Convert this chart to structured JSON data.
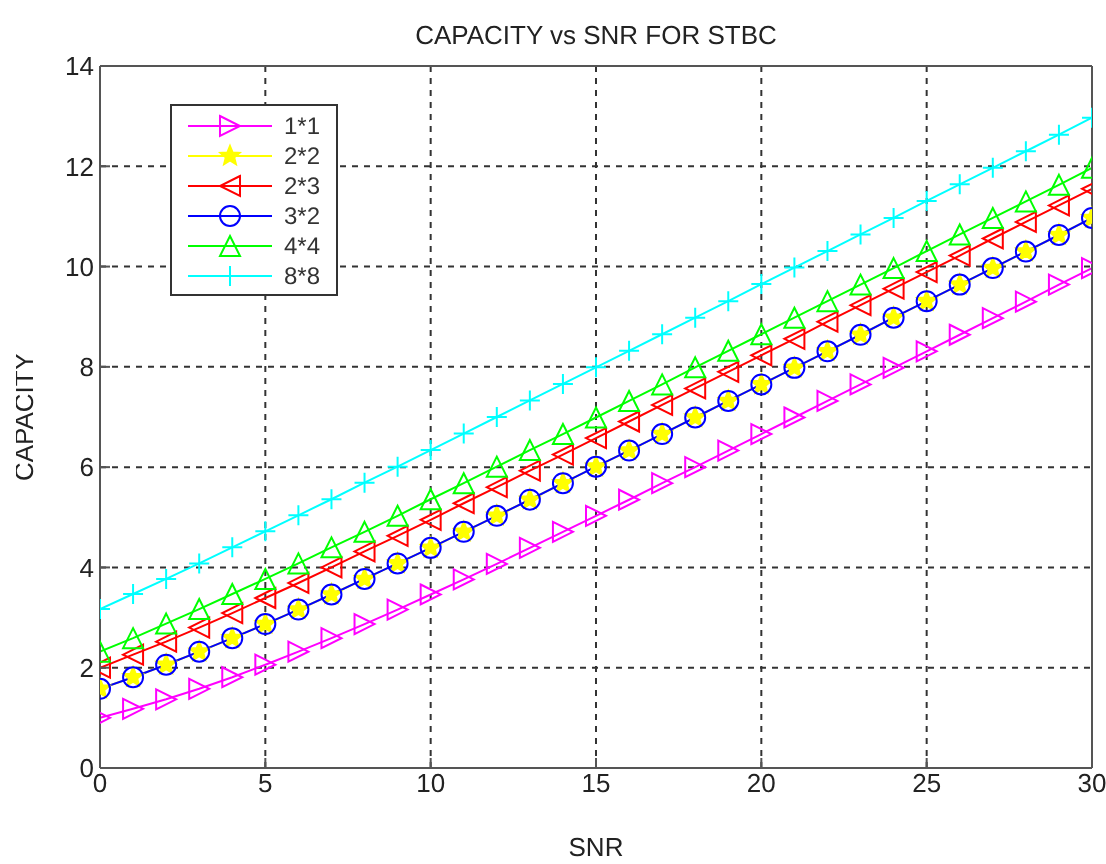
{
  "chart_data": {
    "type": "line",
    "title": "CAPACITY vs SNR FOR STBC",
    "xlabel": "SNR",
    "ylabel": "CAPACITY",
    "x": [
      0,
      1,
      2,
      3,
      4,
      5,
      6,
      7,
      8,
      9,
      10,
      11,
      12,
      13,
      14,
      15,
      16,
      17,
      18,
      19,
      20,
      21,
      22,
      23,
      24,
      25,
      26,
      27,
      28,
      29,
      30
    ],
    "series": [
      {
        "name": "1*1",
        "color": "#ff00ff",
        "marker": "triangle-right",
        "values": [
          1.0,
          1.18,
          1.37,
          1.58,
          1.81,
          2.06,
          2.32,
          2.59,
          2.87,
          3.16,
          3.46,
          3.76,
          4.07,
          4.39,
          4.71,
          5.03,
          5.35,
          5.68,
          6.0,
          6.33,
          6.66,
          6.99,
          7.32,
          7.65,
          7.98,
          8.31,
          8.64,
          8.97,
          9.3,
          9.64,
          9.97
        ]
      },
      {
        "name": "2*2",
        "color": "#ffff00",
        "marker": "star",
        "values": [
          1.58,
          1.81,
          2.06,
          2.32,
          2.59,
          2.87,
          3.16,
          3.46,
          3.77,
          4.08,
          4.39,
          4.71,
          5.03,
          5.35,
          5.68,
          6.01,
          6.33,
          6.66,
          6.99,
          7.32,
          7.65,
          7.98,
          8.31,
          8.64,
          8.98,
          9.31,
          9.64,
          9.97,
          10.3,
          10.63,
          10.97
        ]
      },
      {
        "name": "2*3",
        "color": "#ff0000",
        "marker": "triangle-left",
        "values": [
          2.0,
          2.26,
          2.52,
          2.8,
          3.09,
          3.39,
          3.69,
          4.0,
          4.32,
          4.63,
          4.95,
          5.28,
          5.6,
          5.93,
          6.25,
          6.58,
          6.91,
          7.24,
          7.57,
          7.9,
          8.23,
          8.56,
          8.9,
          9.23,
          9.56,
          9.89,
          10.22,
          10.56,
          10.89,
          11.22,
          11.55
        ]
      },
      {
        "name": "3*2",
        "color": "#0000ff",
        "marker": "circle",
        "values": [
          1.58,
          1.81,
          2.06,
          2.32,
          2.59,
          2.87,
          3.16,
          3.46,
          3.77,
          4.08,
          4.39,
          4.71,
          5.03,
          5.35,
          5.68,
          6.01,
          6.33,
          6.66,
          6.99,
          7.32,
          7.65,
          7.98,
          8.31,
          8.64,
          8.98,
          9.31,
          9.64,
          9.97,
          10.3,
          10.63,
          10.97
        ]
      },
      {
        "name": "4*4",
        "color": "#00ff00",
        "marker": "triangle",
        "values": [
          2.32,
          2.59,
          2.88,
          3.17,
          3.47,
          3.77,
          4.08,
          4.4,
          4.71,
          5.03,
          5.36,
          5.68,
          6.01,
          6.34,
          6.66,
          6.99,
          7.32,
          7.65,
          7.99,
          8.32,
          8.65,
          8.98,
          9.31,
          9.64,
          9.97,
          10.31,
          10.64,
          10.97,
          11.3,
          11.63,
          11.97
        ]
      },
      {
        "name": "8*8",
        "color": "#00ffff",
        "marker": "cross",
        "values": [
          3.17,
          3.47,
          3.77,
          4.08,
          4.4,
          4.72,
          5.04,
          5.36,
          5.69,
          6.01,
          6.34,
          6.67,
          7.0,
          7.33,
          7.66,
          7.99,
          8.32,
          8.65,
          8.98,
          9.31,
          9.65,
          9.98,
          10.31,
          10.64,
          10.97,
          11.31,
          11.64,
          11.97,
          12.3,
          12.63,
          12.97
        ]
      }
    ],
    "xlim": [
      0,
      30
    ],
    "xticks": [
      0,
      5,
      10,
      15,
      20,
      25,
      30
    ],
    "ylim": [
      0,
      14
    ],
    "yticks": [
      0,
      2,
      4,
      6,
      8,
      10,
      12,
      14
    ],
    "grid": true,
    "legend": "top left",
    "line_style": "solid"
  }
}
